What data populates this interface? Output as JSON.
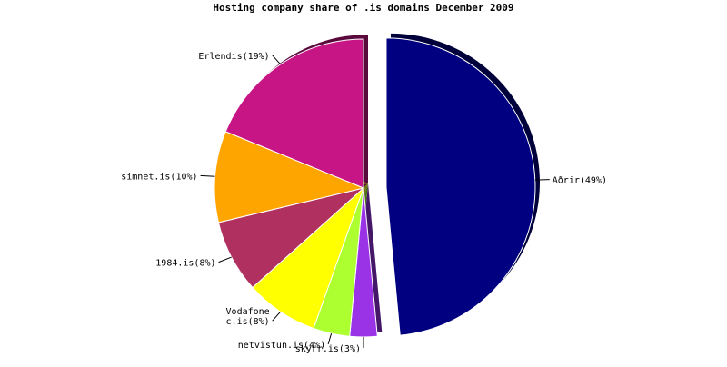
{
  "chart_data": {
    "type": "pie",
    "title": "Hosting company share of .is domains December 2009",
    "labels": [
      [
        "Aðrir(49%)"
      ],
      [
        "skyrr.is(3%)"
      ],
      [
        "netvistun.is(4%)"
      ],
      [
        "Vodafone",
        "c.is(8%)"
      ],
      [
        "1984.is(8%)"
      ],
      [
        "simnet.is(10%)"
      ],
      [
        "Erlendis(19%)"
      ]
    ],
    "values": [
      49,
      3,
      4,
      8,
      8,
      10,
      19
    ],
    "colors": [
      "#000080",
      "#9a32e6",
      "#adff2f",
      "#ffff00",
      "#b03060",
      "#ffa500",
      "#c71585"
    ],
    "explode": [
      true,
      false,
      false,
      false,
      false,
      false,
      false
    ]
  }
}
